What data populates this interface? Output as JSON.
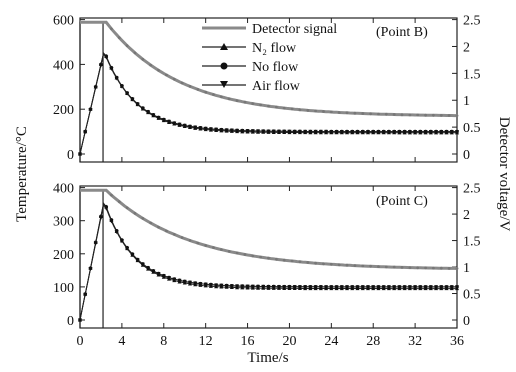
{
  "figure": {
    "ylabel_left": "Temperature/°C",
    "ylabel_right": "Detector voltage/V",
    "xlabel": "Time/s"
  },
  "legend": {
    "entries": [
      {
        "label": "Detector signal",
        "marker": "line"
      },
      {
        "label": "N₂ flow",
        "marker": "triangle-up"
      },
      {
        "label": "No flow",
        "marker": "circle"
      },
      {
        "label": "Air flow",
        "marker": "triangle-down"
      }
    ]
  },
  "chart_data": [
    {
      "type": "line",
      "panel_label": "(Point B)",
      "xlabel": "",
      "ylabel": "",
      "xlim": [
        0,
        36
      ],
      "ylim": [
        0,
        600
      ],
      "y2lim": [
        0,
        2.5
      ],
      "x_ticks": [
        0,
        4,
        8,
        12,
        16,
        20,
        24,
        28,
        32,
        36
      ],
      "y_ticks": [
        0,
        200,
        400,
        600
      ],
      "y2_ticks": [
        0,
        0.5,
        1.0,
        1.5,
        2.0,
        2.5
      ],
      "detector_signal": {
        "axis": "right",
        "high": 2.45,
        "low": 0,
        "on": 0,
        "off": 2.2
      },
      "series": [
        {
          "name": "Detector signal",
          "axis": "right",
          "tau": 7.0,
          "start": 2.4,
          "peak": 2.45,
          "end": 0.7
        },
        {
          "name": "N₂ flow",
          "axis": "left",
          "peak_time": 2.3,
          "peak": 460,
          "end": 95,
          "tau": 3.0
        },
        {
          "name": "No flow",
          "axis": "left",
          "peak_time": 2.3,
          "peak": 460,
          "end": 100,
          "tau": 3.0
        },
        {
          "name": "Air flow",
          "axis": "left",
          "peak_time": 2.3,
          "peak": 455,
          "end": 100,
          "tau": 3.0
        }
      ]
    },
    {
      "type": "line",
      "panel_label": "(Point C)",
      "xlabel": "Time/s",
      "ylabel": "",
      "xlim": [
        0,
        36
      ],
      "ylim": [
        0,
        400
      ],
      "y2lim": [
        0,
        2.5
      ],
      "x_ticks": [
        0,
        4,
        8,
        12,
        16,
        20,
        24,
        28,
        32,
        36
      ],
      "x_tick_labels": [
        "0",
        "4",
        "8",
        "12",
        "16",
        "20",
        "24",
        "28",
        "32",
        "36"
      ],
      "y_ticks": [
        0,
        100,
        200,
        300,
        400
      ],
      "y2_ticks": [
        0,
        0.5,
        1.0,
        1.5,
        2.0,
        2.5
      ],
      "detector_signal": {
        "axis": "right",
        "high": 2.45,
        "low": 0,
        "on": 0,
        "off": 2.2
      },
      "series": [
        {
          "name": "Detector signal",
          "axis": "right",
          "tau": 8.0,
          "start": 2.45,
          "peak": 2.45,
          "end": 0.95
        },
        {
          "name": "N₂ flow",
          "axis": "left",
          "peak_time": 2.3,
          "peak": 360,
          "end": 95,
          "tau": 2.8
        },
        {
          "name": "No flow",
          "axis": "left",
          "peak_time": 2.3,
          "peak": 360,
          "end": 100,
          "tau": 2.8
        },
        {
          "name": "Air flow",
          "axis": "left",
          "peak_time": 2.3,
          "peak": 355,
          "end": 100,
          "tau": 2.8
        }
      ]
    }
  ]
}
